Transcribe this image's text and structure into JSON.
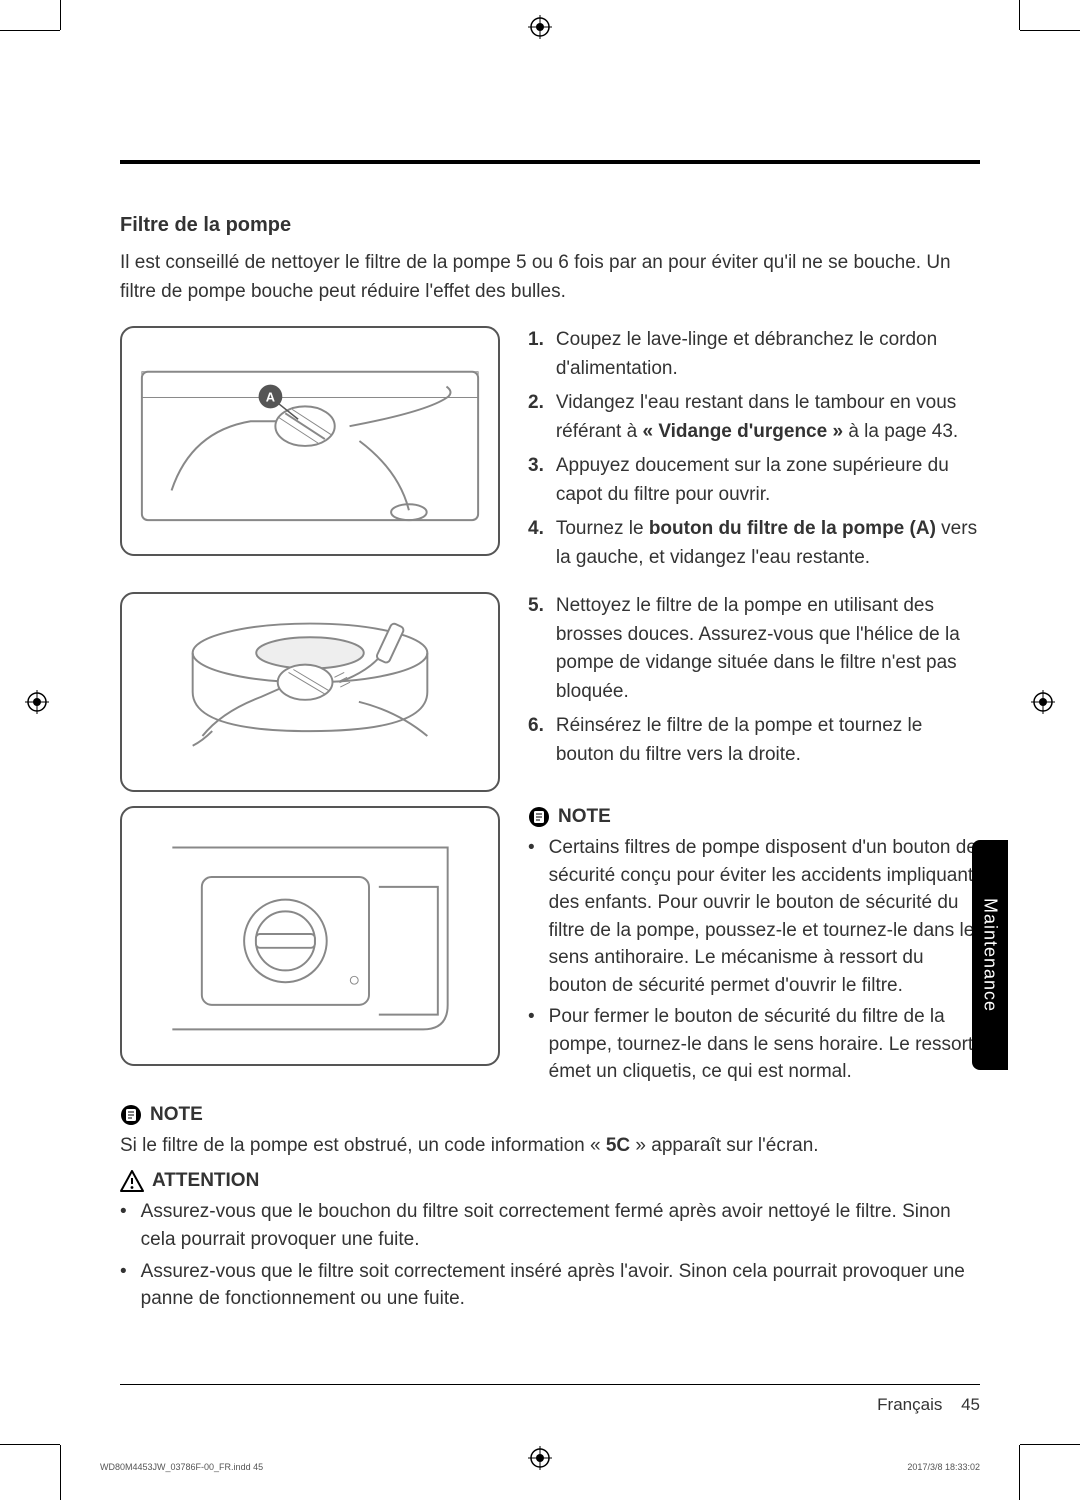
{
  "section": {
    "title": "Filtre de la pompe",
    "intro": "Il est conseillé de nettoyer le filtre de la pompe 5 ou 6 fois par an pour éviter qu'il ne se bouche. Un filtre de pompe bouche peut réduire l'effet des bulles."
  },
  "steps_block1": [
    {
      "num": "1.",
      "text_before": "Coupez le lave-linge et débranchez le cordon d'alimentation.",
      "bold": "",
      "text_after": ""
    },
    {
      "num": "2.",
      "text_before": "Vidangez l'eau restant dans le tambour en vous référant à ",
      "bold": "« Vidange d'urgence »",
      "text_after": "  à la page 43."
    },
    {
      "num": "3.",
      "text_before": "Appuyez doucement sur la zone supérieure du capot du filtre pour ouvrir.",
      "bold": "",
      "text_after": ""
    },
    {
      "num": "4.",
      "text_before": "Tournez le ",
      "bold": "bouton du filtre de la pompe (A)",
      "text_after": " vers la gauche, et vidangez l'eau restante."
    }
  ],
  "steps_block2": [
    {
      "num": "5.",
      "text_before": "Nettoyez le filtre de la pompe en utilisant des brosses douces. Assurez-vous que l'hélice de la pompe de vidange située dans le filtre n'est pas bloquée.",
      "bold": "",
      "text_after": ""
    },
    {
      "num": "6.",
      "text_before": "Réinsérez le filtre de la pompe et tournez le bouton du filtre vers la droite.",
      "bold": "",
      "text_after": ""
    }
  ],
  "note1_label": "NOTE",
  "note1_items": [
    "Certains filtres de pompe disposent d'un bouton de sécurité conçu pour éviter les accidents impliquant des enfants. Pour ouvrir le bouton de sécurité du filtre de la pompe, poussez-le et tournez-le dans le sens antihoraire. Le mécanisme à ressort du bouton de sécurité permet d'ouvrir le filtre.",
    "Pour fermer le bouton de sécurité du filtre de la pompe, tournez-le dans le sens horaire. Le ressort émet un cliquetis, ce qui est normal."
  ],
  "note2_label": "NOTE",
  "note2_text_before": "Si le filtre de la pompe est obstrué, un code information « ",
  "note2_bold": "5C",
  "note2_text_after": " » apparaît sur l'écran.",
  "attention_label": "ATTENTION",
  "attention_items": [
    "Assurez-vous que le bouchon du filtre soit correctement fermé après avoir nettoyé le filtre. Sinon cela pourrait provoquer une fuite.",
    "Assurez-vous que le filtre soit correctement inséré après l'avoir. Sinon cela pourrait provoquer une panne de fonctionnement ou une fuite."
  ],
  "side_tab": "Maintenance",
  "footer": {
    "lang": "Français",
    "page": "45"
  },
  "indd": {
    "file": "WD80M4453JW_03786F-00_FR.indd   45",
    "timestamp": "2017/3/8   18:33:02"
  },
  "figure1_label": "A",
  "colors": {
    "text": "#333333",
    "rule": "#000000",
    "figure_border": "#555555",
    "tab_bg": "#000000",
    "tab_fg": "#ffffff"
  }
}
